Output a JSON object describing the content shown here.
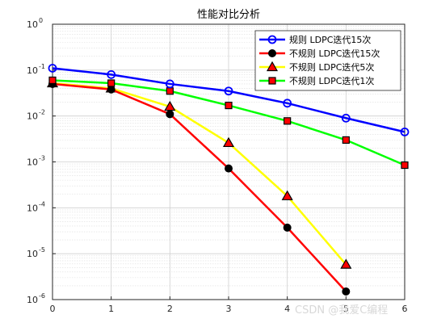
{
  "chart_data": {
    "type": "line",
    "title": "性能对比分析",
    "xlabel": "",
    "ylabel": "",
    "x": [
      0,
      1,
      2,
      3,
      4,
      5,
      6
    ],
    "xlim": [
      0,
      6
    ],
    "ylim_exponent": [
      -6,
      0
    ],
    "y_scale": "log",
    "grid": true,
    "legend_position": "top-right",
    "x_ticks": [
      "0",
      "1",
      "2",
      "3",
      "4",
      "5",
      "6"
    ],
    "y_tick_base": "10",
    "y_tick_exponents": [
      "0",
      "-1",
      "-2",
      "-3",
      "-4",
      "-5",
      "-6"
    ],
    "series": [
      {
        "name": "规则 LDPC迭代15次",
        "color": "#0000ff",
        "marker": "circle-open",
        "x": [
          0,
          1,
          2,
          3,
          4,
          5,
          6
        ],
        "values": [
          0.11,
          0.08,
          0.05,
          0.035,
          0.019,
          0.009,
          0.0045
        ]
      },
      {
        "name": "不规则 LDPC迭代15次",
        "color": "#ff0000",
        "marker": "circle-filled",
        "x": [
          0,
          1,
          2,
          3,
          4,
          5
        ],
        "values": [
          0.05,
          0.038,
          0.011,
          0.00072,
          3.7e-05,
          1.5e-06
        ]
      },
      {
        "name": "不规则 LDPC迭代5次",
        "color": "#ffff00",
        "marker": "triangle",
        "x": [
          0,
          1,
          2,
          3,
          4,
          5
        ],
        "values": [
          0.052,
          0.04,
          0.016,
          0.0026,
          0.00018,
          5.8e-06
        ]
      },
      {
        "name": "不规则 LDPC迭代1次",
        "color": "#00ff00",
        "marker": "square",
        "x": [
          0,
          1,
          2,
          3,
          4,
          5,
          6
        ],
        "values": [
          0.06,
          0.052,
          0.035,
          0.017,
          0.0078,
          0.003,
          0.00085
        ]
      }
    ]
  },
  "watermark": "CSDN @我爱C编程"
}
